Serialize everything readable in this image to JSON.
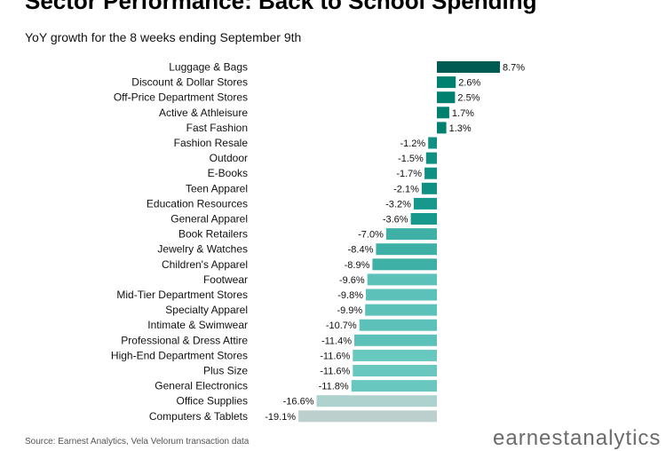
{
  "header": {
    "title": "Sector Performance: Back to School Spending",
    "subtitle": "YoY growth for the 8 weeks ending September 9th"
  },
  "footer": {
    "source": "Source: Earnest Analytics, Vela Velorum transaction data",
    "logo_text": "earnestanalytics"
  },
  "chart_data": {
    "type": "bar",
    "orientation": "horizontal",
    "title": "Sector Performance: Back to School Spending",
    "subtitle": "YoY growth for the 8 weeks ending September 9th",
    "xlim": [
      -19.1,
      8.7
    ],
    "grid": false,
    "categories": [
      "Luggage & Bags",
      "Discount & Dollar Stores",
      "Off-Price Department Stores",
      "Active & Athleisure",
      "Fast Fashion",
      "Fashion Resale",
      "Outdoor",
      "E-Books",
      "Teen Apparel",
      "Education Resources",
      "General Apparel",
      "Book Retailers",
      "Jewelry & Watches",
      "Children's Apparel",
      "Footwear",
      "Mid-Tier Department Stores",
      "Specialty Apparel",
      "Intimate & Swimwear",
      "Professional & Dress Attire",
      "High-End Department Stores",
      "Plus Size",
      "General Electronics",
      "Office Supplies",
      "Computers & Tablets"
    ],
    "values": [
      8.7,
      2.6,
      2.5,
      1.7,
      1.3,
      -1.2,
      -1.5,
      -1.7,
      -2.1,
      -3.2,
      -3.6,
      -7.0,
      -8.4,
      -8.9,
      -9.6,
      -9.8,
      -9.9,
      -10.7,
      -11.4,
      -11.6,
      -11.6,
      -11.8,
      -16.6,
      -19.1
    ],
    "labels": [
      "8.7%",
      "2.6%",
      "2.5%",
      "1.7%",
      "1.3%",
      "-1.2%",
      "-1.5%",
      "-1.7%",
      "-2.1%",
      "-3.2%",
      "-3.6%",
      "-7.0%",
      "-8.4%",
      "-8.9%",
      "-9.6%",
      "-9.8%",
      "-9.9%",
      "-10.7%",
      "-11.4%",
      "-11.6%",
      "-11.6%",
      "-11.8%",
      "-16.6%",
      "-19.1%"
    ],
    "colors": [
      "#005c52",
      "#00806f",
      "#00806f",
      "#00806f",
      "#00806f",
      "#118f83",
      "#118f83",
      "#118f83",
      "#118f83",
      "#16998c",
      "#16998c",
      "#3eb0a6",
      "#3eb0a6",
      "#3eb0a6",
      "#5cc2b9",
      "#5cc2b9",
      "#5cc2b9",
      "#5cc2b9",
      "#5cc2b9",
      "#68c8bf",
      "#68c8bf",
      "#68c8bf",
      "#aed2ce",
      "#bccfcd"
    ]
  }
}
